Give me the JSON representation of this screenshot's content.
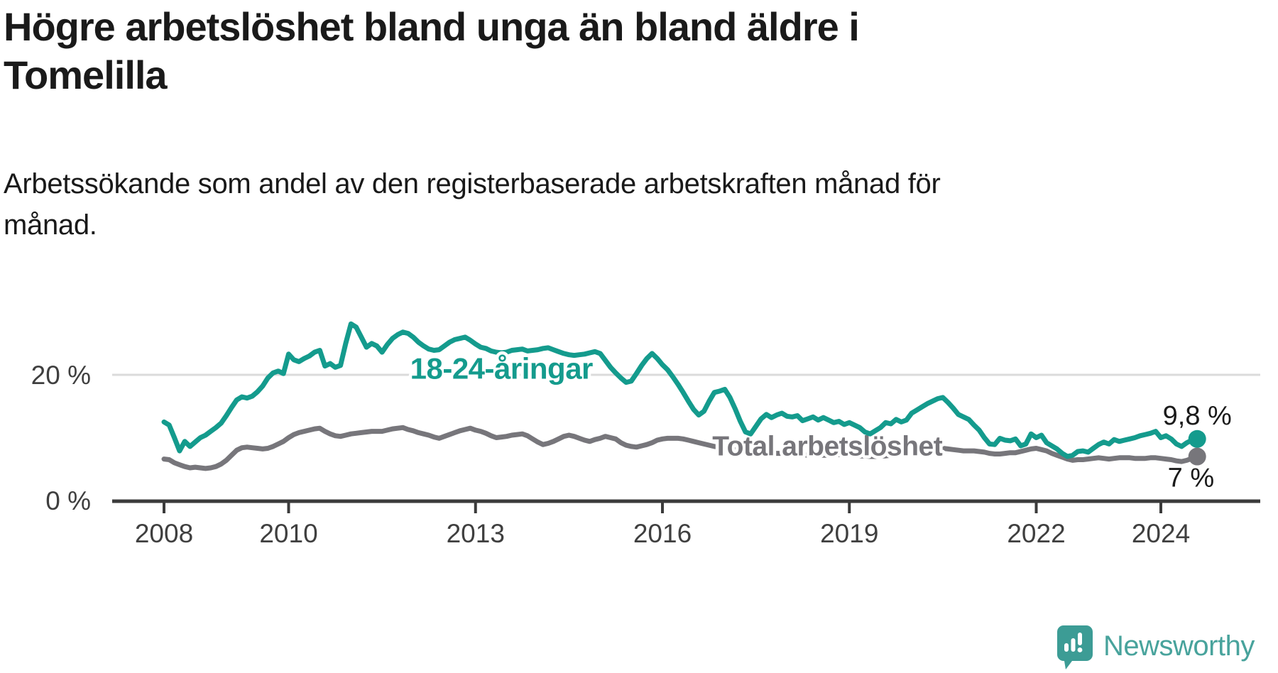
{
  "header": {
    "title": "Högre arbetslöshet bland unga än bland äldre i Tomelilla",
    "subtitle_lines": [
      "Arbetssökande som andel av den registerbaserade arbetskraften månad för",
      "månad."
    ]
  },
  "footer": {
    "brand": "Newsworthy",
    "brand_color": "#48A39C",
    "logo_icon": "speech-bubble-bar-chart-exclamation-icon",
    "logo_color": "#3C9C95"
  },
  "colors": {
    "background": "#FFFFFF",
    "title_text": "#1A1A1A",
    "axis": "#3B3B3B",
    "axis_labels": "#3F3F3F",
    "gridline": "#DBDBDB",
    "youth_series": "#149B8D",
    "total_series": "#77767B",
    "annotation_text": "#1A1A1A"
  },
  "chart_data": {
    "type": "line",
    "x_axis": {
      "tick_years": [
        2008,
        2010,
        2013,
        2016,
        2019,
        2022,
        2024
      ],
      "tick_labels": [
        "2008",
        "2010",
        "2013",
        "2016",
        "2019",
        "2022",
        "2024"
      ]
    },
    "y_axis": {
      "tick_values": [
        0,
        20
      ],
      "tick_labels": [
        "0 %",
        "20 %"
      ],
      "range": [
        0,
        33
      ]
    },
    "grid": "single horizontal gridline at 20 %",
    "start_year": 2008,
    "points_per_year": 12,
    "series": [
      {
        "name": "18-24-åringar",
        "color": "#149B8D",
        "line_width": 7,
        "line_label": {
          "text": "18-24-åringar",
          "x_year": 2011.95,
          "y_pct": 19.4
        },
        "end_label": {
          "text": "9,8 %",
          "x_year": 2024.03,
          "y_pct": 12.1
        },
        "end_value": 9.8,
        "values": [
          12.5,
          12.0,
          10.0,
          7.9,
          9.4,
          8.6,
          9.3,
          10.0,
          10.4,
          11.0,
          11.6,
          12.3,
          13.5,
          14.8,
          16.0,
          16.5,
          16.3,
          16.6,
          17.3,
          18.2,
          19.5,
          20.3,
          20.6,
          20.2,
          23.3,
          22.4,
          22.1,
          22.6,
          23.0,
          23.6,
          23.9,
          21.4,
          21.8,
          21.2,
          21.5,
          25.0,
          28.1,
          27.6,
          26.0,
          24.4,
          25.0,
          24.6,
          23.6,
          24.8,
          25.8,
          26.4,
          26.8,
          26.6,
          26.0,
          25.2,
          24.6,
          24.1,
          23.9,
          24.0,
          24.6,
          25.2,
          25.6,
          25.8,
          26.0,
          25.5,
          24.9,
          24.4,
          24.2,
          23.8,
          23.6,
          23.5,
          23.6,
          23.9,
          24.0,
          24.1,
          23.8,
          23.9,
          24.0,
          24.2,
          24.3,
          24.0,
          23.7,
          23.4,
          23.2,
          23.1,
          23.2,
          23.3,
          23.5,
          23.7,
          23.4,
          22.3,
          21.2,
          20.3,
          19.5,
          18.8,
          19.0,
          20.2,
          21.5,
          22.6,
          23.4,
          22.6,
          21.6,
          20.8,
          19.7,
          18.5,
          17.2,
          15.8,
          14.5,
          13.6,
          14.2,
          15.8,
          17.2,
          17.4,
          17.7,
          16.4,
          14.6,
          12.6,
          10.9,
          10.6,
          11.8,
          13.0,
          13.7,
          13.2,
          13.6,
          13.9,
          13.4,
          13.3,
          13.5,
          12.7,
          13.0,
          13.3,
          12.8,
          13.2,
          12.8,
          12.4,
          12.6,
          12.1,
          12.4,
          12.0,
          11.6,
          10.9,
          10.6,
          11.1,
          11.6,
          12.4,
          12.2,
          12.9,
          12.5,
          12.8,
          13.9,
          14.4,
          14.9,
          15.4,
          15.8,
          16.2,
          16.4,
          15.6,
          14.7,
          13.7,
          13.3,
          12.9,
          12.0,
          11.2,
          10.0,
          9.0,
          8.9,
          9.9,
          9.6,
          9.5,
          9.8,
          8.7,
          9.0,
          10.6,
          10.0,
          10.4,
          9.2,
          8.7,
          8.2,
          7.5,
          7.0,
          7.2,
          7.8,
          7.9,
          7.7,
          8.3,
          8.9,
          9.3,
          9.0,
          9.7,
          9.4,
          9.6,
          9.8,
          10.0,
          10.3,
          10.5,
          10.7,
          11.0,
          10.0,
          10.3,
          9.8,
          9.0,
          8.6,
          9.2,
          9.6,
          9.8
        ]
      },
      {
        "name": "Total arbetslöshet",
        "color": "#77767B",
        "line_width": 7,
        "line_label": {
          "text": "Total arbetslöshet",
          "x_year": 2016.8,
          "y_pct": 7.2
        },
        "end_label": {
          "text": "7 %",
          "x_year": 2024.11,
          "y_pct": 2.2
        },
        "end_value": 7,
        "values": [
          6.6,
          6.5,
          6.0,
          5.7,
          5.4,
          5.2,
          5.3,
          5.2,
          5.1,
          5.2,
          5.4,
          5.8,
          6.4,
          7.2,
          8.0,
          8.4,
          8.5,
          8.4,
          8.3,
          8.2,
          8.3,
          8.6,
          9.0,
          9.4,
          10.0,
          10.5,
          10.8,
          11.0,
          11.2,
          11.4,
          11.5,
          11.0,
          10.6,
          10.3,
          10.2,
          10.4,
          10.6,
          10.7,
          10.8,
          10.9,
          11.0,
          11.0,
          11.0,
          11.2,
          11.4,
          11.5,
          11.6,
          11.3,
          11.1,
          10.8,
          10.6,
          10.4,
          10.1,
          9.9,
          10.2,
          10.5,
          10.8,
          11.1,
          11.3,
          11.5,
          11.2,
          11.0,
          10.7,
          10.3,
          10.0,
          10.1,
          10.2,
          10.4,
          10.5,
          10.6,
          10.3,
          9.8,
          9.3,
          8.9,
          9.1,
          9.4,
          9.8,
          10.2,
          10.4,
          10.2,
          9.9,
          9.6,
          9.4,
          9.7,
          9.9,
          10.2,
          10.0,
          9.8,
          9.2,
          8.8,
          8.6,
          8.5,
          8.7,
          8.9,
          9.2,
          9.6,
          9.8,
          9.9,
          9.9,
          9.9,
          9.8,
          9.6,
          9.4,
          9.2,
          9.0,
          8.8,
          8.6,
          8.5,
          8.4,
          8.2,
          8.1,
          8.0,
          7.9,
          7.8,
          7.8,
          7.7,
          7.6,
          7.6,
          7.5,
          7.5,
          7.5,
          7.4,
          7.3,
          7.3,
          7.2,
          7.2,
          7.2,
          7.2,
          7.2,
          7.3,
          7.3,
          7.3,
          7.3,
          7.2,
          7.1,
          7.1,
          7.0,
          7.0,
          7.1,
          7.1,
          7.2,
          7.3,
          7.4,
          7.5,
          7.5,
          7.7,
          7.9,
          8.1,
          8.3,
          8.3,
          8.3,
          8.2,
          8.1,
          8.0,
          7.9,
          7.9,
          7.9,
          7.8,
          7.7,
          7.5,
          7.4,
          7.4,
          7.5,
          7.6,
          7.6,
          7.8,
          8.0,
          8.2,
          8.3,
          8.1,
          7.9,
          7.5,
          7.2,
          6.9,
          6.6,
          6.4,
          6.5,
          6.5,
          6.6,
          6.7,
          6.8,
          6.7,
          6.6,
          6.7,
          6.8,
          6.8,
          6.8,
          6.7,
          6.7,
          6.7,
          6.8,
          6.8,
          6.7,
          6.6,
          6.5,
          6.3,
          6.2,
          6.4,
          6.7,
          7.0
        ]
      }
    ]
  }
}
